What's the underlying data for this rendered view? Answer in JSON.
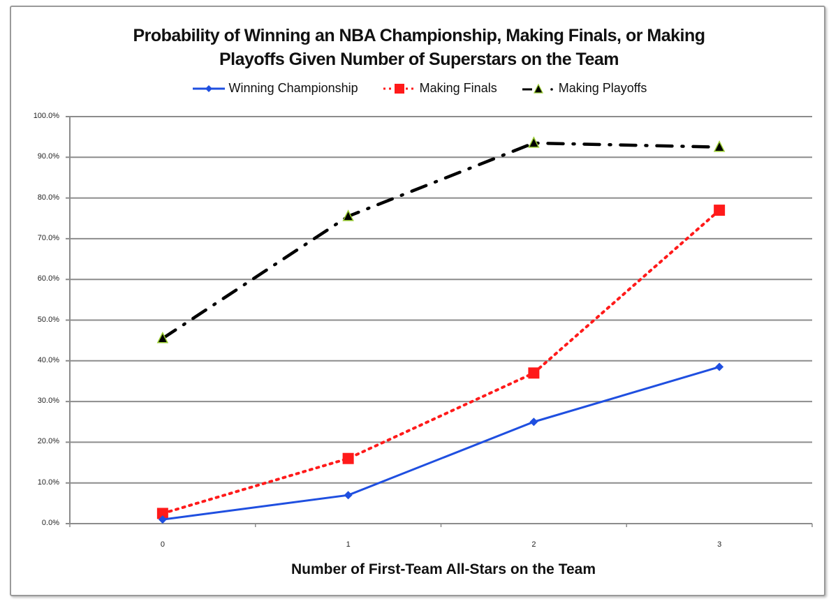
{
  "chart_data": {
    "type": "line",
    "title": "Probability of Winning an NBA Championship, Making Finals, or Making Playoffs Given Number of Superstars on the Team",
    "title_lines": [
      "Probability of Winning an NBA Championship, Making Finals, or Making",
      "Playoffs Given Number of Superstars on the Team"
    ],
    "xlabel": "Number of First-Team All-Stars on the Team",
    "ylabel": "",
    "categories": [
      "0",
      "1",
      "2",
      "3"
    ],
    "ylim": [
      0,
      100
    ],
    "y_ticks": [
      "0.0%",
      "10.0%",
      "20.0%",
      "30.0%",
      "40.0%",
      "50.0%",
      "60.0%",
      "70.0%",
      "80.0%",
      "90.0%",
      "100.0%"
    ],
    "grid": true,
    "legend_position": "top",
    "series": [
      {
        "name": "Winning Championship",
        "values": [
          1.0,
          7.0,
          25.0,
          38.5
        ],
        "color": "#1f4fe0",
        "line_style": "solid",
        "marker": "diamond"
      },
      {
        "name": "Making Finals",
        "values": [
          2.5,
          16.0,
          37.0,
          77.0
        ],
        "color": "#ff1a1a",
        "line_style": "dotted",
        "marker": "square"
      },
      {
        "name": "Making Playoffs",
        "values": [
          45.5,
          75.5,
          93.5,
          92.5
        ],
        "color": "#000000",
        "line_style": "dash-dot",
        "marker": "triangle",
        "marker_edge_color": "#9acd32"
      }
    ]
  }
}
